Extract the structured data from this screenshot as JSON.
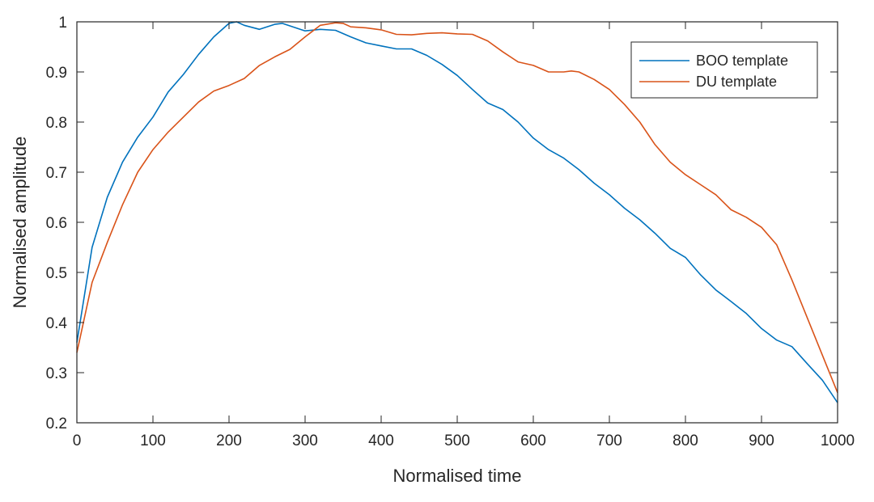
{
  "chart_data": {
    "type": "line",
    "title": "",
    "xlabel": "Normalised time",
    "ylabel": "Normalised amplitude",
    "xlim": [
      0,
      1000
    ],
    "ylim": [
      0.2,
      1
    ],
    "xticks": [
      0,
      100,
      200,
      300,
      400,
      500,
      600,
      700,
      800,
      900,
      1000
    ],
    "yticks": [
      0.2,
      0.3,
      0.4,
      0.5,
      0.6,
      0.7,
      0.8,
      0.9,
      1
    ],
    "xtick_labels": [
      "0",
      "100",
      "200",
      "300",
      "400",
      "500",
      "600",
      "700",
      "800",
      "900",
      "1000"
    ],
    "ytick_labels": [
      "0.2",
      "0.3",
      "0.4",
      "0.5",
      "0.6",
      "0.7",
      "0.8",
      "0.9",
      "1"
    ],
    "grid": false,
    "legend_position": "top-right",
    "series": [
      {
        "name": "BOO template",
        "color": "#0072bd",
        "x": [
          0,
          20,
          40,
          60,
          80,
          100,
          120,
          140,
          160,
          180,
          200,
          210,
          220,
          240,
          260,
          270,
          280,
          300,
          320,
          340,
          360,
          380,
          400,
          420,
          440,
          460,
          480,
          500,
          520,
          540,
          560,
          580,
          600,
          620,
          640,
          660,
          680,
          700,
          720,
          740,
          760,
          780,
          800,
          820,
          840,
          860,
          880,
          900,
          920,
          940,
          960,
          980,
          1000
        ],
        "y": [
          0.36,
          0.55,
          0.65,
          0.72,
          0.77,
          0.81,
          0.86,
          0.895,
          0.935,
          0.97,
          0.997,
          1.0,
          0.993,
          0.985,
          0.995,
          0.997,
          0.992,
          0.982,
          0.985,
          0.983,
          0.97,
          0.958,
          0.952,
          0.946,
          0.946,
          0.933,
          0.915,
          0.893,
          0.865,
          0.838,
          0.825,
          0.8,
          0.768,
          0.745,
          0.728,
          0.705,
          0.678,
          0.655,
          0.628,
          0.605,
          0.578,
          0.548,
          0.53,
          0.495,
          0.465,
          0.442,
          0.418,
          0.388,
          0.365,
          0.352,
          0.318,
          0.285,
          0.24
        ]
      },
      {
        "name": "DU template",
        "color": "#d95319",
        "x": [
          0,
          20,
          40,
          60,
          80,
          100,
          120,
          140,
          160,
          180,
          200,
          220,
          240,
          260,
          280,
          300,
          320,
          340,
          350,
          360,
          380,
          400,
          420,
          440,
          460,
          480,
          500,
          520,
          540,
          560,
          580,
          600,
          620,
          640,
          650,
          660,
          680,
          700,
          720,
          740,
          760,
          780,
          800,
          820,
          840,
          860,
          880,
          900,
          920,
          940,
          960,
          980,
          1000
        ],
        "y": [
          0.34,
          0.48,
          0.56,
          0.635,
          0.7,
          0.745,
          0.78,
          0.81,
          0.84,
          0.862,
          0.873,
          0.887,
          0.913,
          0.93,
          0.945,
          0.97,
          0.993,
          0.998,
          0.997,
          0.99,
          0.988,
          0.984,
          0.975,
          0.974,
          0.977,
          0.978,
          0.976,
          0.975,
          0.962,
          0.94,
          0.92,
          0.913,
          0.9,
          0.9,
          0.902,
          0.9,
          0.885,
          0.865,
          0.835,
          0.8,
          0.755,
          0.72,
          0.695,
          0.675,
          0.655,
          0.625,
          0.61,
          0.59,
          0.555,
          0.485,
          0.41,
          0.335,
          0.26
        ]
      }
    ]
  }
}
